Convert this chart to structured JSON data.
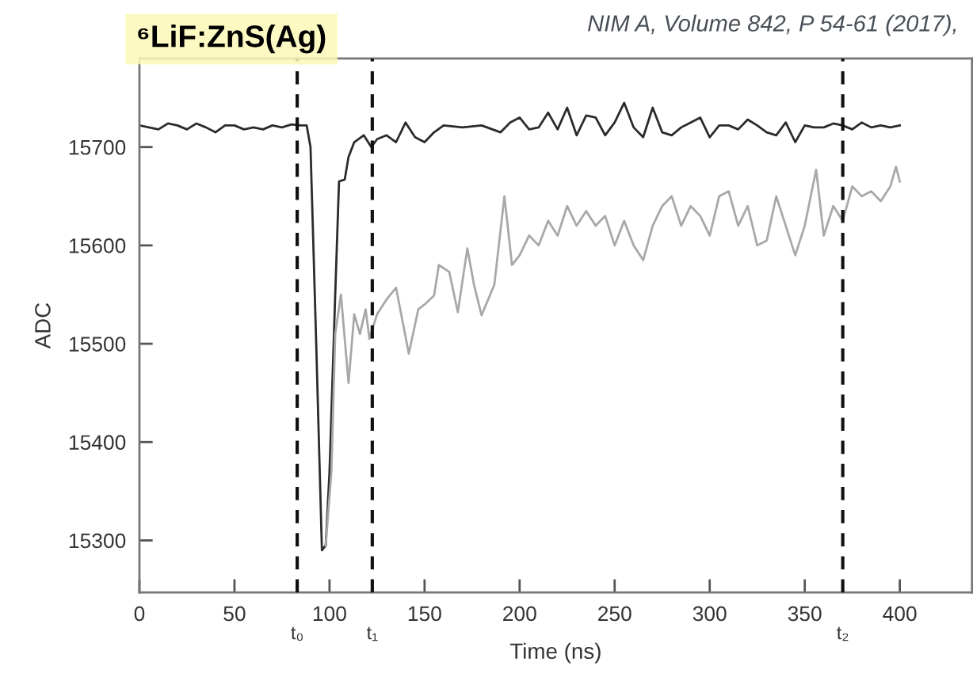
{
  "chart_data": {
    "type": "line",
    "title": "⁶LiF:ZnS(Ag)",
    "annotations": [
      "NIM A, Volume 842, P 54-61 (2017),"
    ],
    "xlabel": "Time (ns)",
    "ylabel": "ADC",
    "xlim": [
      0,
      438
    ],
    "ylim": [
      15247,
      15790
    ],
    "xticks": [
      0,
      50,
      100,
      150,
      200,
      250,
      300,
      350,
      400
    ],
    "yticks": [
      15300,
      15400,
      15500,
      15600,
      15700
    ],
    "grid": false,
    "legend": false,
    "marker": "none",
    "line_style": "solid",
    "ref_lines": [
      {
        "axis": "x",
        "value": 83,
        "label": "t₀",
        "color": "#111111",
        "line_style": "dashed"
      },
      {
        "axis": "x",
        "value": 122.5,
        "label": "t₁",
        "color": "#111111",
        "line_style": "dashed"
      },
      {
        "axis": "x",
        "value": 370,
        "label": "t₂",
        "color": "#111111",
        "line_style": "dashed"
      }
    ],
    "series": [
      {
        "color": "#2b2b2b",
        "x": [
          0,
          5,
          10,
          15,
          20,
          25,
          30,
          35,
          40,
          45,
          50,
          55,
          60,
          65,
          70,
          75,
          80,
          85,
          88,
          90,
          93,
          96,
          98,
          100,
          103,
          105,
          108,
          110,
          113,
          118,
          122,
          125,
          130,
          135,
          140,
          145,
          150,
          155,
          160,
          170,
          180,
          190,
          195,
          200,
          205,
          210,
          215,
          220,
          225,
          230,
          235,
          240,
          245,
          250,
          255,
          260,
          265,
          270,
          275,
          280,
          285,
          290,
          295,
          300,
          305,
          310,
          315,
          320,
          325,
          330,
          335,
          340,
          345,
          350,
          355,
          360,
          365,
          370,
          375,
          380,
          385,
          390,
          395,
          400
        ],
        "values": [
          15722,
          15720,
          15718,
          15724,
          15722,
          15718,
          15724,
          15720,
          15715,
          15722,
          15722,
          15718,
          15720,
          15718,
          15722,
          15720,
          15723,
          15722,
          15722,
          15700,
          15500,
          15290,
          15295,
          15370,
          15550,
          15665,
          15667,
          15690,
          15705,
          15712,
          15700,
          15708,
          15712,
          15705,
          15725,
          15710,
          15705,
          15715,
          15722,
          15720,
          15722,
          15715,
          15725,
          15730,
          15718,
          15720,
          15735,
          15718,
          15740,
          15712,
          15732,
          15730,
          15712,
          15725,
          15745,
          15720,
          15710,
          15740,
          15715,
          15712,
          15720,
          15725,
          15730,
          15710,
          15722,
          15722,
          15718,
          15728,
          15722,
          15715,
          15712,
          15725,
          15705,
          15722,
          15720,
          15720,
          15724,
          15722,
          15718,
          15725,
          15720,
          15722,
          15720,
          15722
        ]
      },
      {
        "color": "#a8a8a8",
        "x": [
          98,
          101,
          103,
          106,
          110,
          113,
          116,
          119,
          121,
          125,
          130,
          135,
          141.7,
          146.7,
          150,
          155,
          157.5,
          163,
          167.5,
          172.5,
          176,
          180,
          186.7,
          192,
          196,
          200,
          205,
          210,
          215,
          220,
          225,
          230,
          235,
          240,
          245,
          250,
          255,
          260,
          265,
          270,
          275,
          280,
          285,
          290,
          295,
          300,
          305,
          310,
          315,
          320,
          325,
          330,
          335,
          340,
          345,
          350,
          356,
          360,
          365,
          370,
          375,
          380,
          385,
          390,
          395,
          398,
          400
        ],
        "values": [
          15295,
          15370,
          15510,
          15550,
          15460,
          15530,
          15510,
          15535,
          15505,
          15530,
          15545,
          15557,
          15490,
          15535,
          15540,
          15549,
          15580,
          15573,
          15532,
          15597,
          15560,
          15529,
          15560,
          15650,
          15580,
          15590,
          15610,
          15600,
          15625,
          15610,
          15640,
          15620,
          15635,
          15620,
          15630,
          15600,
          15625,
          15600,
          15585,
          15620,
          15640,
          15650,
          15620,
          15640,
          15630,
          15610,
          15650,
          15655,
          15620,
          15640,
          15600,
          15605,
          15650,
          15620,
          15590,
          15620,
          15677,
          15610,
          15640,
          15625,
          15660,
          15650,
          15655,
          15645,
          15660,
          15680,
          15665
        ]
      }
    ]
  }
}
